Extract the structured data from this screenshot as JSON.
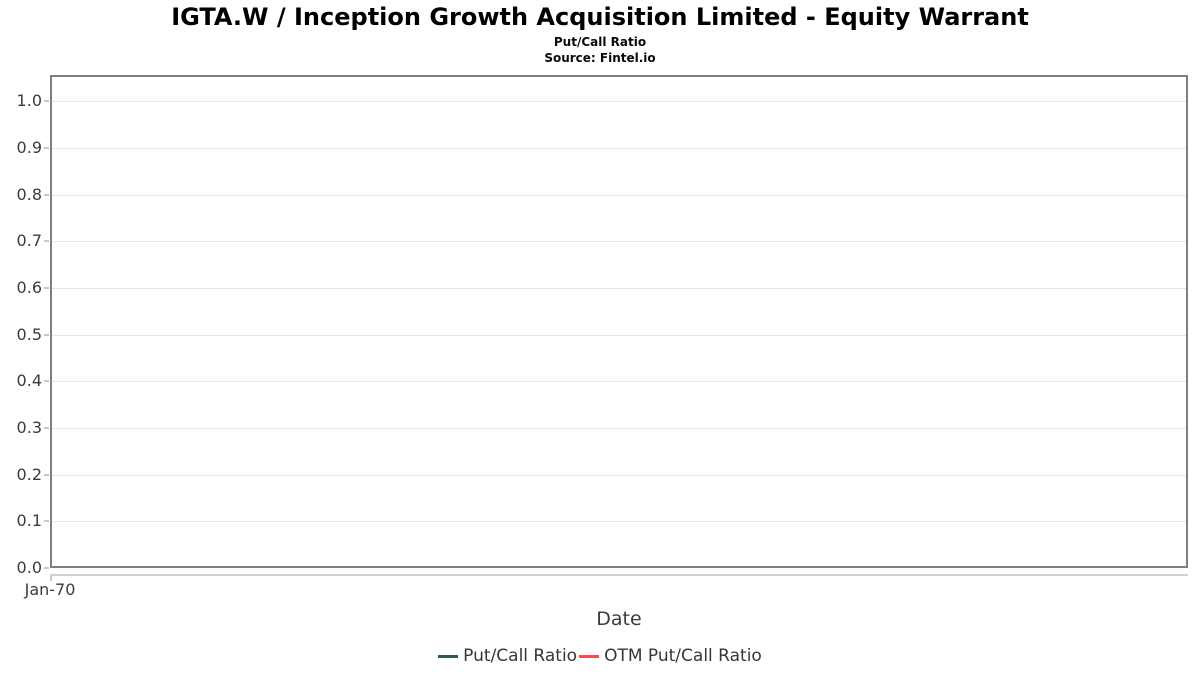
{
  "header": {
    "title": "IGTA.W / Inception Growth Acquisition Limited - Equity Warrant",
    "subtitle": "Put/Call Ratio",
    "source": "Source: Fintel.io"
  },
  "chart_data": {
    "type": "line",
    "title": "IGTA.W / Inception Growth Acquisition Limited - Equity Warrant",
    "subtitle": "Put/Call Ratio",
    "source": "Source: Fintel.io",
    "xlabel": "Date",
    "ylabel": "",
    "ylim": [
      0,
      1.056
    ],
    "y_ticks": [
      0.0,
      0.1,
      0.2,
      0.3,
      0.4,
      0.5,
      0.6,
      0.7,
      0.8,
      0.9,
      1.0
    ],
    "y_tick_labels": [
      "0.0",
      "0.1",
      "0.2",
      "0.3",
      "0.4",
      "0.5",
      "0.6",
      "0.7",
      "0.8",
      "0.9",
      "1.0"
    ],
    "x_tick_labels": [
      "Jan-70"
    ],
    "grid": "horizontal",
    "legend_position": "bottom-center",
    "series": [
      {
        "name": "Put/Call Ratio",
        "color": "#2e5e40",
        "x": [],
        "values": []
      },
      {
        "name": "OTM Put/Call Ratio",
        "color": "#fb4d4d",
        "x": [],
        "values": []
      }
    ]
  },
  "colors": {
    "plot_border": "#7e7e7e",
    "gridline": "#e7e7e7",
    "tick_mark": "#c8c8c8",
    "axis_line": "#d2d2d2",
    "tick_text": "#3b3b3b"
  }
}
